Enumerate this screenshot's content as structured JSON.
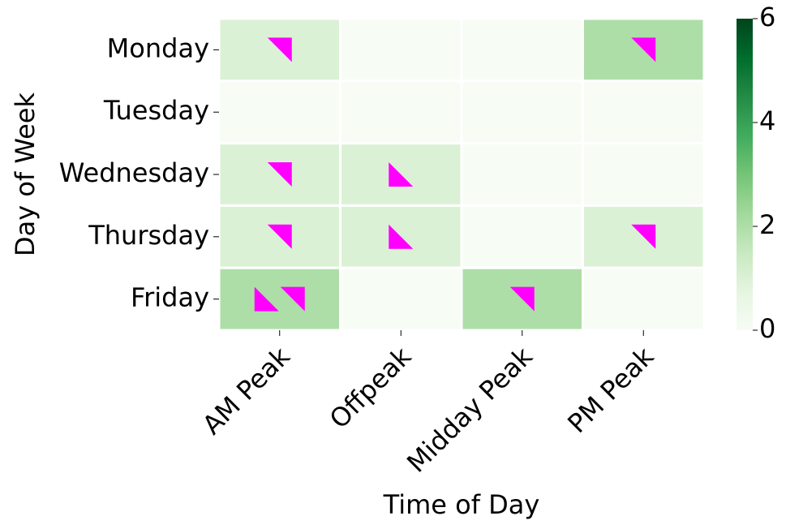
{
  "chart_data": {
    "type": "heatmap",
    "x_label": "Time of Day",
    "y_label": "Day of Week",
    "x_categories": [
      "AM Peak",
      "Offpeak",
      "Midday Peak",
      "PM Peak"
    ],
    "y_categories": [
      "Monday",
      "Tuesday",
      "Wednesday",
      "Thursday",
      "Friday"
    ],
    "values": [
      [
        1,
        0,
        0,
        2
      ],
      [
        0,
        0,
        0,
        0
      ],
      [
        1,
        1,
        0,
        0
      ],
      [
        1,
        1,
        0,
        1
      ],
      [
        2,
        0,
        2,
        0
      ]
    ],
    "colormap": "Greens",
    "clim": [
      0,
      6
    ],
    "colorbar_ticks": [
      0,
      2,
      4,
      6
    ],
    "marker_series": [
      {
        "shape": "lower-left",
        "color": "#ff00ff",
        "values": [
          [
            0,
            0,
            0,
            0
          ],
          [
            0,
            0,
            0,
            0
          ],
          [
            0,
            1,
            0,
            0
          ],
          [
            0,
            1,
            0,
            0
          ],
          [
            1,
            0,
            0,
            0
          ]
        ]
      },
      {
        "shape": "upper-right",
        "color": "#ff00ff",
        "values": [
          [
            1,
            0,
            0,
            1
          ],
          [
            0,
            0,
            0,
            0
          ],
          [
            1,
            0,
            0,
            0
          ],
          [
            1,
            0,
            0,
            1
          ],
          [
            1,
            0,
            1,
            0
          ]
        ]
      }
    ]
  }
}
